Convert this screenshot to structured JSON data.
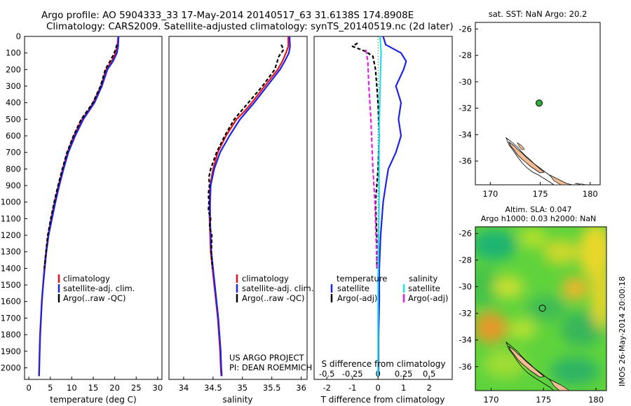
{
  "header": {
    "title_line1": "Argo profile: AO 5904333_33 17-May-2014 20140517_63 31.6138S 174.8908E",
    "title_line2": "Climatology: CARS2009. Satellite-adjusted climatology: synTS_20140519.nc (2d later)"
  },
  "colors": {
    "climatology": "#e8141b",
    "satellite": "#1c24e8",
    "argo": "#000000",
    "sat_salinity": "#22e0e8",
    "argo_salinity": "#e81ee8",
    "land": "#f5bc94",
    "float_marker": "#2fae3a"
  },
  "chart_data": [
    {
      "id": "temperature",
      "type": "line",
      "xlabel": "temperature (deg C)",
      "xlim": [
        -1,
        31
      ],
      "xticks": [
        0,
        5,
        10,
        15,
        20,
        25,
        30
      ],
      "ylim": [
        2070,
        0
      ],
      "yticks": [
        0,
        100,
        200,
        300,
        400,
        500,
        600,
        700,
        800,
        900,
        1000,
        1100,
        1200,
        1300,
        1400,
        1500,
        1600,
        1700,
        1800,
        1900,
        2000
      ],
      "legend": [
        "climatology",
        "satellite-adj. clim.",
        "Argo(..raw -QC)"
      ],
      "series": [
        {
          "name": "climatology",
          "color_key": "climatology",
          "dash": "",
          "points": [
            [
              20.8,
              0
            ],
            [
              20.6,
              60
            ],
            [
              20.2,
              100
            ],
            [
              19.3,
              150
            ],
            [
              18.0,
              200
            ],
            [
              16.8,
              300
            ],
            [
              15.0,
              400
            ],
            [
              13.8,
              450
            ],
            [
              12.4,
              500
            ],
            [
              10.5,
              600
            ],
            [
              9.0,
              700
            ],
            [
              7.9,
              800
            ],
            [
              6.9,
              900
            ],
            [
              6.0,
              1000
            ],
            [
              5.2,
              1100
            ],
            [
              4.5,
              1200
            ],
            [
              4.0,
              1300
            ],
            [
              3.6,
              1400
            ],
            [
              3.3,
              1500
            ],
            [
              3.0,
              1600
            ],
            [
              2.8,
              1700
            ],
            [
              2.6,
              1800
            ],
            [
              2.5,
              1900
            ],
            [
              2.4,
              2000
            ],
            [
              2.35,
              2050
            ]
          ]
        },
        {
          "name": "satellite-adj. clim.",
          "color_key": "satellite",
          "dash": "",
          "points": [
            [
              20.9,
              0
            ],
            [
              20.8,
              60
            ],
            [
              20.5,
              100
            ],
            [
              19.6,
              150
            ],
            [
              18.3,
              200
            ],
            [
              17.0,
              300
            ],
            [
              15.3,
              400
            ],
            [
              14.0,
              450
            ],
            [
              12.7,
              500
            ],
            [
              10.8,
              600
            ],
            [
              9.2,
              700
            ],
            [
              8.1,
              800
            ],
            [
              7.1,
              900
            ],
            [
              6.2,
              1000
            ],
            [
              5.4,
              1100
            ],
            [
              4.6,
              1200
            ],
            [
              4.1,
              1300
            ],
            [
              3.7,
              1400
            ],
            [
              3.35,
              1500
            ],
            [
              3.05,
              1600
            ],
            [
              2.85,
              1700
            ],
            [
              2.65,
              1800
            ],
            [
              2.55,
              1900
            ],
            [
              2.45,
              2000
            ],
            [
              2.4,
              2050
            ]
          ]
        },
        {
          "name": "Argo(..raw -QC)",
          "color_key": "argo",
          "dash": "5 3",
          "points": [
            [
              20.5,
              50
            ],
            [
              20.2,
              80
            ],
            [
              19.7,
              110
            ],
            [
              18.9,
              150
            ],
            [
              17.8,
              200
            ],
            [
              16.7,
              300
            ],
            [
              14.9,
              400
            ],
            [
              13.6,
              450
            ],
            [
              12.2,
              500
            ],
            [
              10.4,
              600
            ],
            [
              8.9,
              700
            ],
            [
              7.8,
              800
            ],
            [
              6.8,
              900
            ],
            [
              5.9,
              1000
            ],
            [
              5.1,
              1100
            ],
            [
              4.4,
              1200
            ],
            [
              4.0,
              1300
            ],
            [
              3.6,
              1400
            ]
          ]
        }
      ]
    },
    {
      "id": "salinity",
      "type": "line",
      "xlabel": "salinity",
      "xlim": [
        33.75,
        36.1
      ],
      "xticks": [
        34,
        34.5,
        35,
        35.5,
        36
      ],
      "xticklabels": [
        "34",
        "34.5",
        "35",
        "35.5",
        "36"
      ],
      "ylim": [
        2070,
        0
      ],
      "legend": [
        "climatology",
        "satellite-adj. clim.",
        "Argo(..raw -QC)"
      ],
      "annotation": [
        "US ARGO PROJECT",
        "PI: DEAN ROEMMICH"
      ],
      "series": [
        {
          "name": "climatology",
          "color_key": "climatology",
          "dash": "",
          "points": [
            [
              35.78,
              0
            ],
            [
              35.78,
              60
            ],
            [
              35.74,
              100
            ],
            [
              35.68,
              150
            ],
            [
              35.6,
              200
            ],
            [
              35.38,
              300
            ],
            [
              35.16,
              400
            ],
            [
              35.04,
              450
            ],
            [
              34.9,
              500
            ],
            [
              34.72,
              600
            ],
            [
              34.58,
              700
            ],
            [
              34.5,
              800
            ],
            [
              34.45,
              900
            ],
            [
              34.44,
              1000
            ],
            [
              34.44,
              1100
            ],
            [
              34.45,
              1200
            ],
            [
              34.46,
              1300
            ],
            [
              34.49,
              1400
            ],
            [
              34.52,
              1500
            ],
            [
              34.55,
              1600
            ],
            [
              34.58,
              1700
            ],
            [
              34.6,
              1800
            ],
            [
              34.62,
              1900
            ],
            [
              34.63,
              2000
            ],
            [
              34.64,
              2050
            ]
          ]
        },
        {
          "name": "satellite-adj. clim.",
          "color_key": "satellite",
          "dash": "",
          "points": [
            [
              35.8,
              0
            ],
            [
              35.81,
              60
            ],
            [
              35.79,
              100
            ],
            [
              35.72,
              150
            ],
            [
              35.64,
              200
            ],
            [
              35.42,
              300
            ],
            [
              35.2,
              400
            ],
            [
              35.08,
              450
            ],
            [
              34.96,
              500
            ],
            [
              34.78,
              600
            ],
            [
              34.62,
              700
            ],
            [
              34.52,
              800
            ],
            [
              34.46,
              900
            ],
            [
              34.45,
              1000
            ],
            [
              34.45,
              1100
            ],
            [
              34.46,
              1200
            ],
            [
              34.47,
              1300
            ],
            [
              34.5,
              1400
            ],
            [
              34.53,
              1500
            ],
            [
              34.56,
              1600
            ],
            [
              34.59,
              1700
            ],
            [
              34.61,
              1800
            ],
            [
              34.63,
              1900
            ],
            [
              34.64,
              2000
            ],
            [
              34.65,
              2050
            ]
          ]
        },
        {
          "name": "Argo(..raw -QC)",
          "color_key": "argo",
          "dash": "5 3",
          "points": [
            [
              35.66,
              50
            ],
            [
              35.7,
              80
            ],
            [
              35.62,
              120
            ],
            [
              35.55,
              200
            ],
            [
              35.34,
              300
            ],
            [
              35.1,
              400
            ],
            [
              34.98,
              450
            ],
            [
              34.86,
              500
            ],
            [
              34.7,
              600
            ],
            [
              34.56,
              700
            ],
            [
              34.46,
              800
            ],
            [
              34.43,
              850
            ],
            [
              34.44,
              900
            ],
            [
              34.42,
              950
            ],
            [
              34.43,
              1000
            ],
            [
              34.42,
              1050
            ],
            [
              34.46,
              1100
            ],
            [
              34.44,
              1150
            ],
            [
              34.48,
              1200
            ],
            [
              34.47,
              1300
            ],
            [
              34.49,
              1400
            ]
          ]
        }
      ]
    },
    {
      "id": "difference",
      "type": "line",
      "xlabel": "T difference from climatology",
      "xlim": [
        -2.5,
        2.9
      ],
      "xticks": [
        -2,
        -1,
        0,
        1,
        2
      ],
      "ylim": [
        2070,
        0
      ],
      "top_axis_label": "S difference from climatology",
      "top_ticks": [
        -0.5,
        -0.25,
        0,
        0.25,
        0.5
      ],
      "top_ticklabels": [
        "-0.5",
        "-0.25",
        "0",
        "0.25",
        "0.5"
      ],
      "legend_headers": [
        "temperature",
        "salinity"
      ],
      "legend": [
        "satellite",
        "Argo(-adj)",
        "satellite",
        "Argo(-adj)"
      ],
      "series": [
        {
          "name": "T satellite",
          "color_key": "satellite",
          "dash": "",
          "points": [
            [
              0.2,
              0
            ],
            [
              0.3,
              50
            ],
            [
              0.9,
              100
            ],
            [
              1.1,
              150
            ],
            [
              1.0,
              200
            ],
            [
              0.7,
              300
            ],
            [
              0.9,
              400
            ],
            [
              0.8,
              500
            ],
            [
              0.9,
              600
            ],
            [
              0.7,
              700
            ],
            [
              0.4,
              800
            ],
            [
              0.3,
              900
            ],
            [
              0.2,
              1000
            ],
            [
              0.15,
              1100
            ],
            [
              0.1,
              1200
            ],
            [
              0.05,
              1400
            ],
            [
              0.05,
              1600
            ],
            [
              0.02,
              1800
            ],
            [
              0.02,
              2000
            ],
            [
              0.02,
              2050
            ]
          ]
        },
        {
          "name": "T Argo(-adj)",
          "color_key": "argo",
          "dash": "5 3",
          "points": [
            [
              -0.8,
              40
            ],
            [
              -1.0,
              60
            ],
            [
              -0.5,
              90
            ],
            [
              -0.2,
              120
            ],
            [
              -0.1,
              200
            ],
            [
              0.0,
              400
            ],
            [
              0.05,
              600
            ],
            [
              0.0,
              800
            ],
            [
              -0.1,
              1000
            ],
            [
              -0.05,
              1200
            ],
            [
              -0.05,
              1400
            ]
          ]
        },
        {
          "name": "S satellite",
          "color_key": "sat_salinity",
          "dash": "",
          "points": [
            [
              0.02,
              0
            ],
            [
              0.03,
              100
            ],
            [
              0.02,
              300
            ],
            [
              0.01,
              600
            ],
            [
              0.01,
              1000
            ],
            [
              0.0,
              1500
            ],
            [
              0.0,
              2050
            ]
          ]
        },
        {
          "name": "S Argo(-adj)",
          "color_key": "argo_salinity",
          "dash": "6 3",
          "points": [
            [
              -0.12,
              80
            ],
            [
              -0.1,
              150
            ],
            [
              -0.09,
              300
            ],
            [
              -0.07,
              500
            ],
            [
              -0.05,
              800
            ],
            [
              -0.03,
              1000
            ],
            [
              -0.02,
              1200
            ],
            [
              -0.01,
              1400
            ]
          ]
        }
      ]
    },
    {
      "id": "sst-map",
      "type": "scatter",
      "title": "sat. SST: NaN Argo: 20.2",
      "xlim": [
        168.5,
        181
      ],
      "ylim": [
        -37.8,
        -25.5
      ],
      "xticks": [
        170,
        175,
        180
      ],
      "yticks": [
        -26,
        -28,
        -30,
        -32,
        -34,
        -36
      ],
      "yticklabels": [
        "-26",
        "-28",
        "-30",
        "-32",
        "-34",
        "-36"
      ],
      "float_position": [
        174.89,
        -31.61
      ]
    },
    {
      "id": "sla-map",
      "type": "heatmap",
      "title_line1": "Altim. SLA: 0.047",
      "title_line2": "Argo h1000: 0.03 h2000: NaN",
      "xlim": [
        168.5,
        181
      ],
      "ylim": [
        -37.8,
        -25.5
      ],
      "xticks": [
        170,
        175,
        180
      ],
      "yticks": [
        -26,
        -28,
        -30,
        -32,
        -34,
        -36
      ],
      "yticklabels": [
        "-26",
        "-28",
        "-30",
        "-32",
        "-34",
        "-36"
      ],
      "float_position": [
        174.89,
        -31.61
      ],
      "side_label": "IMOS 26-May-2014 20:00:18"
    }
  ]
}
